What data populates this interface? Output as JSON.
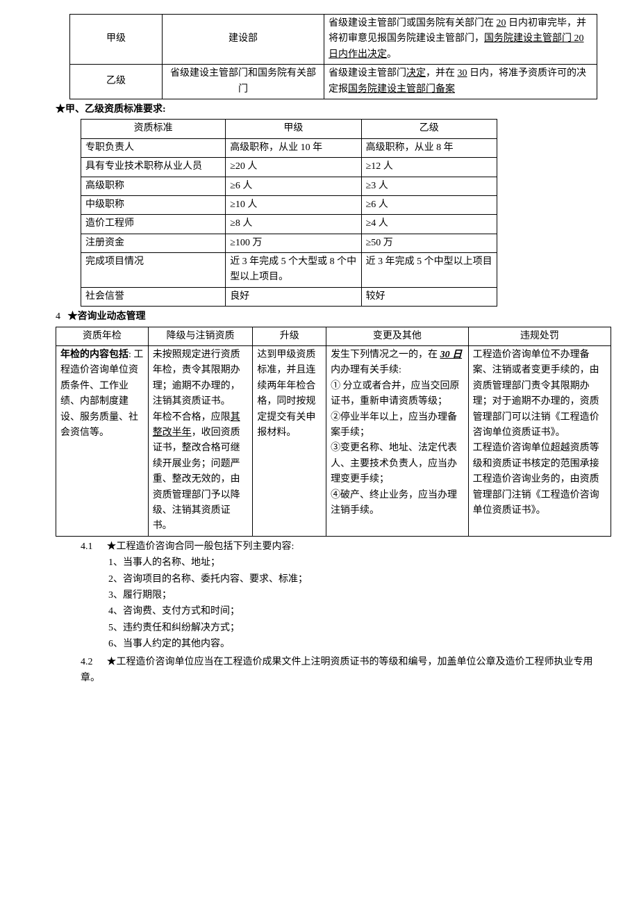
{
  "table1": {
    "rows": [
      {
        "c1": "甲级",
        "c2": "建设部",
        "c3_parts": [
          {
            "t": "省级建设主管部门或国务院有关部门在 "
          },
          {
            "t": "20",
            "u": true
          },
          {
            "t": " 日内初审完毕，并将初审意见报国务院建设主管部门，"
          },
          {
            "t": "国务院建设主管部门 20 日内作出决定",
            "u": true
          },
          {
            "t": "。"
          }
        ]
      },
      {
        "c1": "乙级",
        "c2": "省级建设主管部门和国务院有关部门",
        "c3_parts": [
          {
            "t": "省级建设主管部门"
          },
          {
            "t": "决定",
            "u": true
          },
          {
            "t": "，并在 "
          },
          {
            "t": "30",
            "u": true
          },
          {
            "t": " 日内，将准予资质许可的决定报"
          },
          {
            "t": "国务院建设主管部门备案",
            "u": true
          }
        ]
      }
    ]
  },
  "heading_zizhi": "★甲、乙级资质标准要求:",
  "table2": {
    "header": [
      "资质标准",
      "甲级",
      "乙级"
    ],
    "rows": [
      [
        "专职负责人",
        "高级职称，从业 10 年",
        "高级职称，从业 8 年"
      ],
      [
        "具有专业技术职称从业人员",
        "≥20 人",
        "≥12 人"
      ],
      [
        "高级职称",
        "≥6 人",
        "≥3 人"
      ],
      [
        "中级职称",
        "≥10 人",
        "≥6 人"
      ],
      [
        "造价工程师",
        "≥8 人",
        "≥4 人"
      ],
      [
        "注册资金",
        "≥100 万",
        "≥50 万"
      ],
      [
        "完成项目情况",
        "近 3 年完成 5 个大型或 8 个中型以上项目。",
        "近 3 年完成 5 个中型以上项目"
      ],
      [
        "社会信誉",
        "良好",
        "较好"
      ]
    ]
  },
  "heading_dynamic_num": "4",
  "heading_dynamic_text": "★咨询业动态管理",
  "table3": {
    "header": [
      "资质年检",
      "降级与注销资质",
      "升级",
      "变更及其他",
      "违规处罚"
    ],
    "col1_parts": [
      {
        "t": "年检的内容包括",
        "b": true
      },
      {
        "t": ": 工程造价咨询单位资质条件、工作业绩、内部制度建设、服务质量、社会资信等。"
      }
    ],
    "col2_parts": [
      {
        "t": "未按照规定进行资质年检，责令其限期办理；逾期不办理的，注销其资质证书。"
      },
      {
        "br": true
      },
      {
        "t": "年检不合格，应限"
      },
      {
        "t": "其整改半年",
        "u": true
      },
      {
        "t": "，收回资质证书，整改合格可继续开展业务；问题严重、整改无效的，由资质管理部门予以降级、注销其资质证书。"
      }
    ],
    "col3": "达到甲级资质标准，并且连续两年年检合格，同时按规定提交有关申报材料。",
    "col4_parts": [
      {
        "t": "发生下列情况之一的，在 "
      },
      {
        "t": "30 日",
        "ub": true
      },
      {
        "t": "内办理有关手续:"
      },
      {
        "br": true
      },
      {
        "t": "① 分立或者合并，应当交回原证书，重新申请资质等级；"
      },
      {
        "br": true
      },
      {
        "t": "②停业半年以上，应当办理备案手续；"
      },
      {
        "br": true
      },
      {
        "t": "③变更名称、地址、法定代表人、主要技术负责人，应当办理变更手续；"
      },
      {
        "br": true
      },
      {
        "t": "④破产、终止业务，应当办理注销手续。"
      }
    ],
    "col5_parts": [
      {
        "t": "工程造价咨询单位不办理备案、注销或者变更手续的，由资质管理部门责令其限期办理；对于逾期不办理的，资质管理部门可以注销《工程造价咨询单位资质证书》。"
      },
      {
        "br": true
      },
      {
        "t": "工程造价咨询单位超越资质等级和资质证书核定的范围承接工程造价咨询业务的，由资质管理部门注销《工程造价咨询单位资质证书》。"
      }
    ]
  },
  "section41": {
    "num": "4.1",
    "title": "★工程造价咨询合同一般包括下列主要内容:",
    "items": [
      "1、当事人的名称、地址；",
      "2、咨询项目的名称、委托内容、要求、标准；",
      "3、履行期限；",
      "4、咨询费、支付方式和时间；",
      "5、违约责任和纠纷解决方式；",
      "6、当事人约定的其他内容。"
    ]
  },
  "section42": {
    "num": "4.2",
    "text": "★工程造价咨询单位应当在工程造价成果文件上注明资质证书的等级和编号，加盖单位公章及造价工程师执业专用章。"
  }
}
